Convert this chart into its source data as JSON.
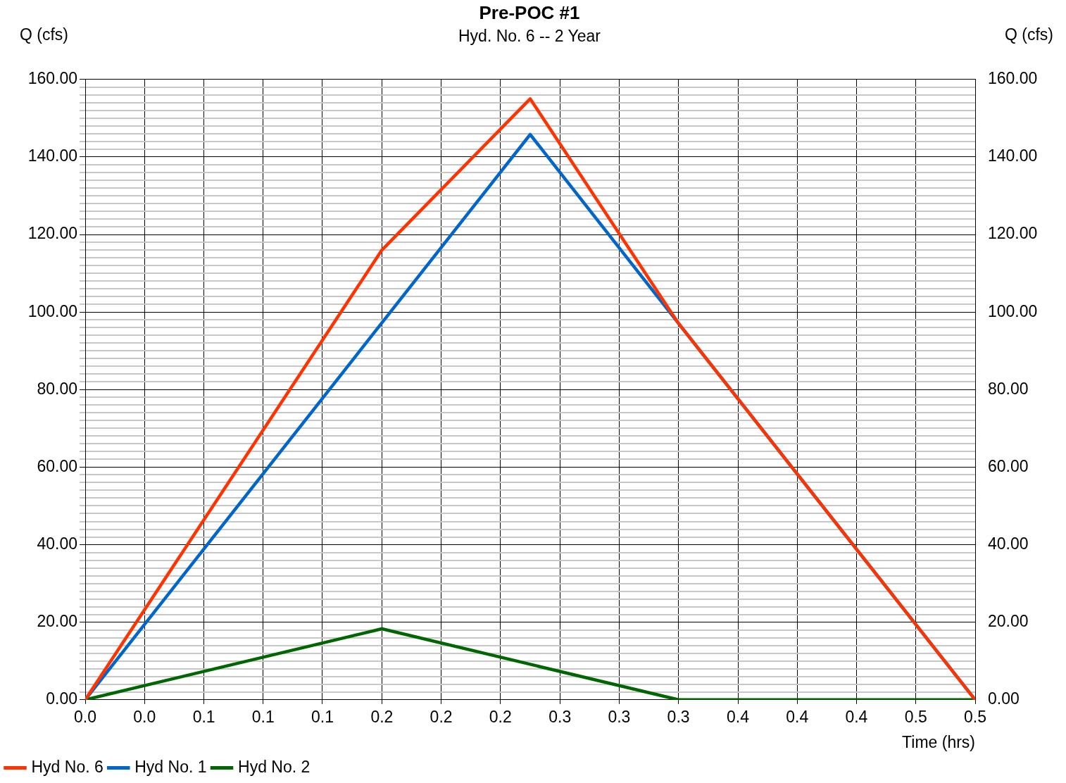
{
  "chart_data": {
    "type": "line",
    "title": "Pre-POC #1",
    "subtitle": "Hyd. No. 6 -- 2 Year",
    "xlabel": "Time (hrs)",
    "ylabel": "Q (cfs)",
    "y2label": "Q (cfs)",
    "series": [
      {
        "name": "Hyd No. 6",
        "color": "#ff3300",
        "x": [
          0,
          0.1667,
          0.25,
          0.3333,
          0.5
        ],
        "values": [
          0,
          116,
          155,
          97.1,
          0
        ]
      },
      {
        "name": "Hyd No. 1",
        "color": "#0066cc",
        "x": [
          0,
          0.25,
          0.3333,
          0.5
        ],
        "values": [
          0,
          145.8,
          97.1,
          0
        ]
      },
      {
        "name": "Hyd No. 2",
        "color": "#006600",
        "x": [
          0,
          0.1667,
          0.3333,
          0.5
        ],
        "values": [
          0,
          18.3,
          0,
          0
        ]
      }
    ],
    "xlim": [
      0,
      0.5
    ],
    "xticks": [
      {
        "value": 0,
        "label": "0.0"
      },
      {
        "value": 0.0333,
        "label": "0.0"
      },
      {
        "value": 0.0667,
        "label": "0.1"
      },
      {
        "value": 0.1,
        "label": "0.1"
      },
      {
        "value": 0.1333,
        "label": "0.1"
      },
      {
        "value": 0.1667,
        "label": "0.2"
      },
      {
        "value": 0.2,
        "label": "0.2"
      },
      {
        "value": 0.2333,
        "label": "0.2"
      },
      {
        "value": 0.2667,
        "label": "0.3"
      },
      {
        "value": 0.3,
        "label": "0.3"
      },
      {
        "value": 0.3333,
        "label": "0.3"
      },
      {
        "value": 0.3667,
        "label": "0.4"
      },
      {
        "value": 0.4,
        "label": "0.4"
      },
      {
        "value": 0.4333,
        "label": "0.4"
      },
      {
        "value": 0.4667,
        "label": "0.5"
      },
      {
        "value": 0.5,
        "label": "0.5"
      }
    ],
    "ylim": [
      0,
      160
    ],
    "yticks": [
      {
        "value": 0,
        "label": "0.00"
      },
      {
        "value": 2,
        "label": null
      },
      {
        "value": 4,
        "label": null
      },
      {
        "value": 6,
        "label": null
      },
      {
        "value": 8,
        "label": null
      },
      {
        "value": 10,
        "label": null
      },
      {
        "value": 12,
        "label": null
      },
      {
        "value": 14,
        "label": null
      },
      {
        "value": 16,
        "label": null
      },
      {
        "value": 18,
        "label": null
      },
      {
        "value": 20,
        "label": "20.00"
      },
      {
        "value": 22,
        "label": null
      },
      {
        "value": 24,
        "label": null
      },
      {
        "value": 26,
        "label": null
      },
      {
        "value": 28,
        "label": null
      },
      {
        "value": 30,
        "label": null
      },
      {
        "value": 32,
        "label": null
      },
      {
        "value": 34,
        "label": null
      },
      {
        "value": 36,
        "label": null
      },
      {
        "value": 38,
        "label": null
      },
      {
        "value": 40,
        "label": "40.00"
      },
      {
        "value": 42,
        "label": null
      },
      {
        "value": 44,
        "label": null
      },
      {
        "value": 46,
        "label": null
      },
      {
        "value": 48,
        "label": null
      },
      {
        "value": 50,
        "label": null
      },
      {
        "value": 52,
        "label": null
      },
      {
        "value": 54,
        "label": null
      },
      {
        "value": 56,
        "label": null
      },
      {
        "value": 58,
        "label": null
      },
      {
        "value": 60,
        "label": "60.00"
      },
      {
        "value": 62,
        "label": null
      },
      {
        "value": 64,
        "label": null
      },
      {
        "value": 66,
        "label": null
      },
      {
        "value": 68,
        "label": null
      },
      {
        "value": 70,
        "label": null
      },
      {
        "value": 72,
        "label": null
      },
      {
        "value": 74,
        "label": null
      },
      {
        "value": 76,
        "label": null
      },
      {
        "value": 78,
        "label": null
      },
      {
        "value": 80,
        "label": "80.00"
      },
      {
        "value": 82,
        "label": null
      },
      {
        "value": 84,
        "label": null
      },
      {
        "value": 86,
        "label": null
      },
      {
        "value": 88,
        "label": null
      },
      {
        "value": 90,
        "label": null
      },
      {
        "value": 92,
        "label": null
      },
      {
        "value": 94,
        "label": null
      },
      {
        "value": 96,
        "label": null
      },
      {
        "value": 98,
        "label": null
      },
      {
        "value": 100,
        "label": "100.00"
      },
      {
        "value": 102,
        "label": null
      },
      {
        "value": 104,
        "label": null
      },
      {
        "value": 106,
        "label": null
      },
      {
        "value": 108,
        "label": null
      },
      {
        "value": 110,
        "label": null
      },
      {
        "value": 112,
        "label": null
      },
      {
        "value": 114,
        "label": null
      },
      {
        "value": 116,
        "label": null
      },
      {
        "value": 118,
        "label": null
      },
      {
        "value": 120,
        "label": "120.00"
      },
      {
        "value": 122,
        "label": null
      },
      {
        "value": 124,
        "label": null
      },
      {
        "value": 126,
        "label": null
      },
      {
        "value": 128,
        "label": null
      },
      {
        "value": 130,
        "label": null
      },
      {
        "value": 132,
        "label": null
      },
      {
        "value": 134,
        "label": null
      },
      {
        "value": 136,
        "label": null
      },
      {
        "value": 138,
        "label": null
      },
      {
        "value": 140,
        "label": "140.00"
      },
      {
        "value": 142,
        "label": null
      },
      {
        "value": 144,
        "label": null
      },
      {
        "value": 146,
        "label": null
      },
      {
        "value": 148,
        "label": null
      },
      {
        "value": 150,
        "label": null
      },
      {
        "value": 152,
        "label": null
      },
      {
        "value": 154,
        "label": null
      },
      {
        "value": 156,
        "label": null
      },
      {
        "value": 158,
        "label": null
      },
      {
        "value": 160,
        "label": "160.00"
      }
    ],
    "y2lim": [
      0,
      160
    ],
    "y2ticks": [
      {
        "value": 0,
        "label": "0.00"
      },
      {
        "value": 20,
        "label": "20.00"
      },
      {
        "value": 40,
        "label": "40.00"
      },
      {
        "value": 60,
        "label": "60.00"
      },
      {
        "value": 80,
        "label": "80.00"
      },
      {
        "value": 100,
        "label": "100.00"
      },
      {
        "value": 120,
        "label": "120.00"
      },
      {
        "value": 140,
        "label": "140.00"
      },
      {
        "value": 160,
        "label": "160.00"
      }
    ],
    "grid": true,
    "legend": "bottom left",
    "marker": "none",
    "line_style": "solid"
  }
}
